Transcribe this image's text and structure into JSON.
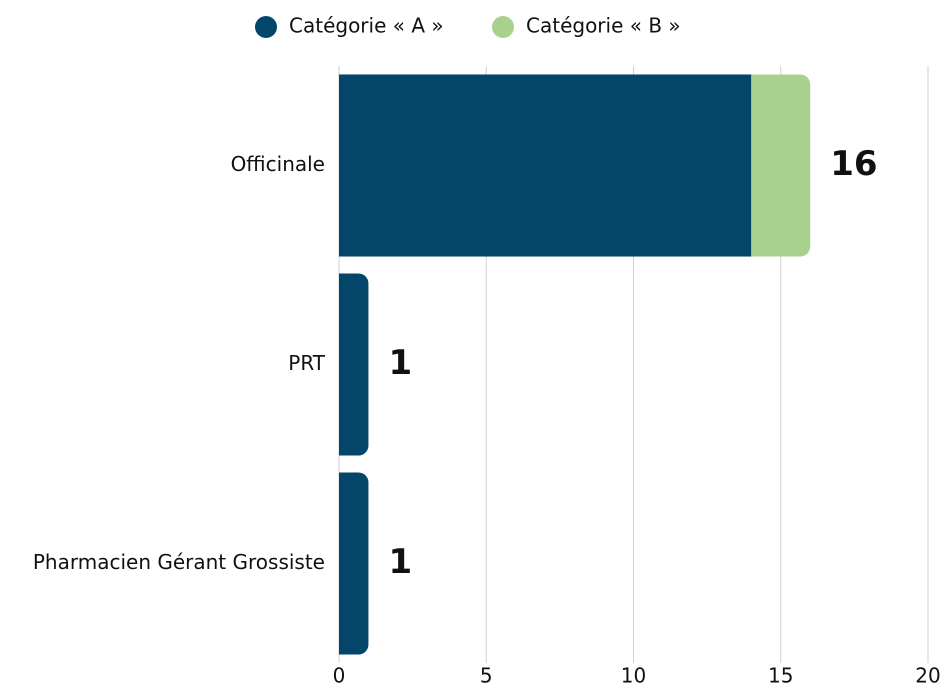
{
  "chart_data": {
    "type": "stacked-barh",
    "categories": [
      "Officinale",
      "PRT",
      "Pharmacien Gérant Grossiste"
    ],
    "series": [
      {
        "name": "Catégorie « A »",
        "color": "#04466a",
        "values": [
          14,
          1,
          1
        ]
      },
      {
        "name": "Catégorie « B »",
        "color": "#a8d18d",
        "values": [
          2,
          0,
          0
        ]
      }
    ],
    "totals": [
      16,
      1,
      1
    ],
    "xlim": [
      0,
      20
    ],
    "xticks": [
      0,
      5,
      10,
      15,
      20
    ],
    "grid": true,
    "legend": "top"
  }
}
